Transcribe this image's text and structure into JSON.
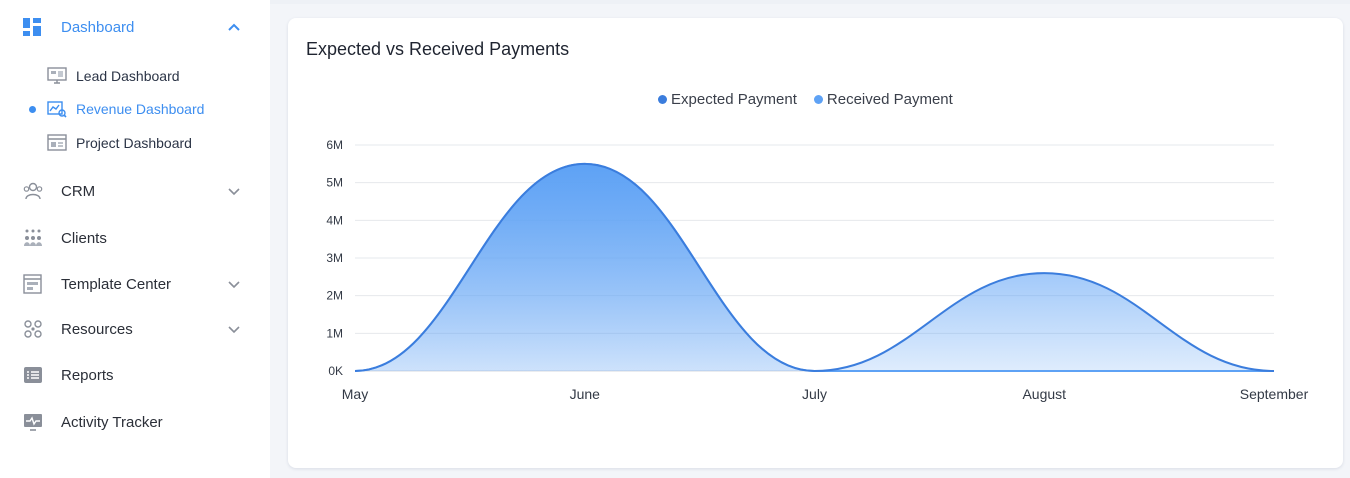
{
  "sidebar": {
    "items": [
      {
        "label": "Dashboard",
        "icon": "dashboard-grid-icon",
        "active": true,
        "expandable": true,
        "expanded": true
      },
      {
        "label": "CRM",
        "icon": "crm-people-icon",
        "expandable": true
      },
      {
        "label": "Clients",
        "icon": "clients-group-icon",
        "expandable": false
      },
      {
        "label": "Template Center",
        "icon": "template-window-icon",
        "expandable": true
      },
      {
        "label": "Resources",
        "icon": "resources-nodes-icon",
        "expandable": true
      },
      {
        "label": "Reports",
        "icon": "reports-list-icon",
        "expandable": false
      },
      {
        "label": "Activity Tracker",
        "icon": "activity-monitor-icon",
        "expandable": false
      }
    ],
    "subitems": [
      {
        "label": "Lead Dashboard",
        "icon": "lead-dashboard-icon"
      },
      {
        "label": "Revenue Dashboard",
        "icon": "revenue-dashboard-icon",
        "active": true
      },
      {
        "label": "Project Dashboard",
        "icon": "project-dashboard-icon"
      }
    ]
  },
  "colors": {
    "accent": "#3d8ef0",
    "expected_series": "#3b7ddd",
    "received_series": "#5ea2f5"
  },
  "chart_data": {
    "type": "area",
    "title": "Expected vs Received Payments",
    "categories": [
      "May",
      "June",
      "July",
      "August",
      "September"
    ],
    "series": [
      {
        "name": "Expected Payment",
        "values": [
          0,
          5500000,
          0,
          2600000,
          0
        ]
      },
      {
        "name": "Received Payment",
        "values": [
          0,
          5500000,
          0,
          0,
          0
        ]
      }
    ],
    "y_ticks": [
      "0K",
      "1M",
      "2M",
      "3M",
      "4M",
      "5M",
      "6M"
    ],
    "ylim": [
      0,
      6000000
    ],
    "legend_position": "top-center",
    "grid": true
  }
}
